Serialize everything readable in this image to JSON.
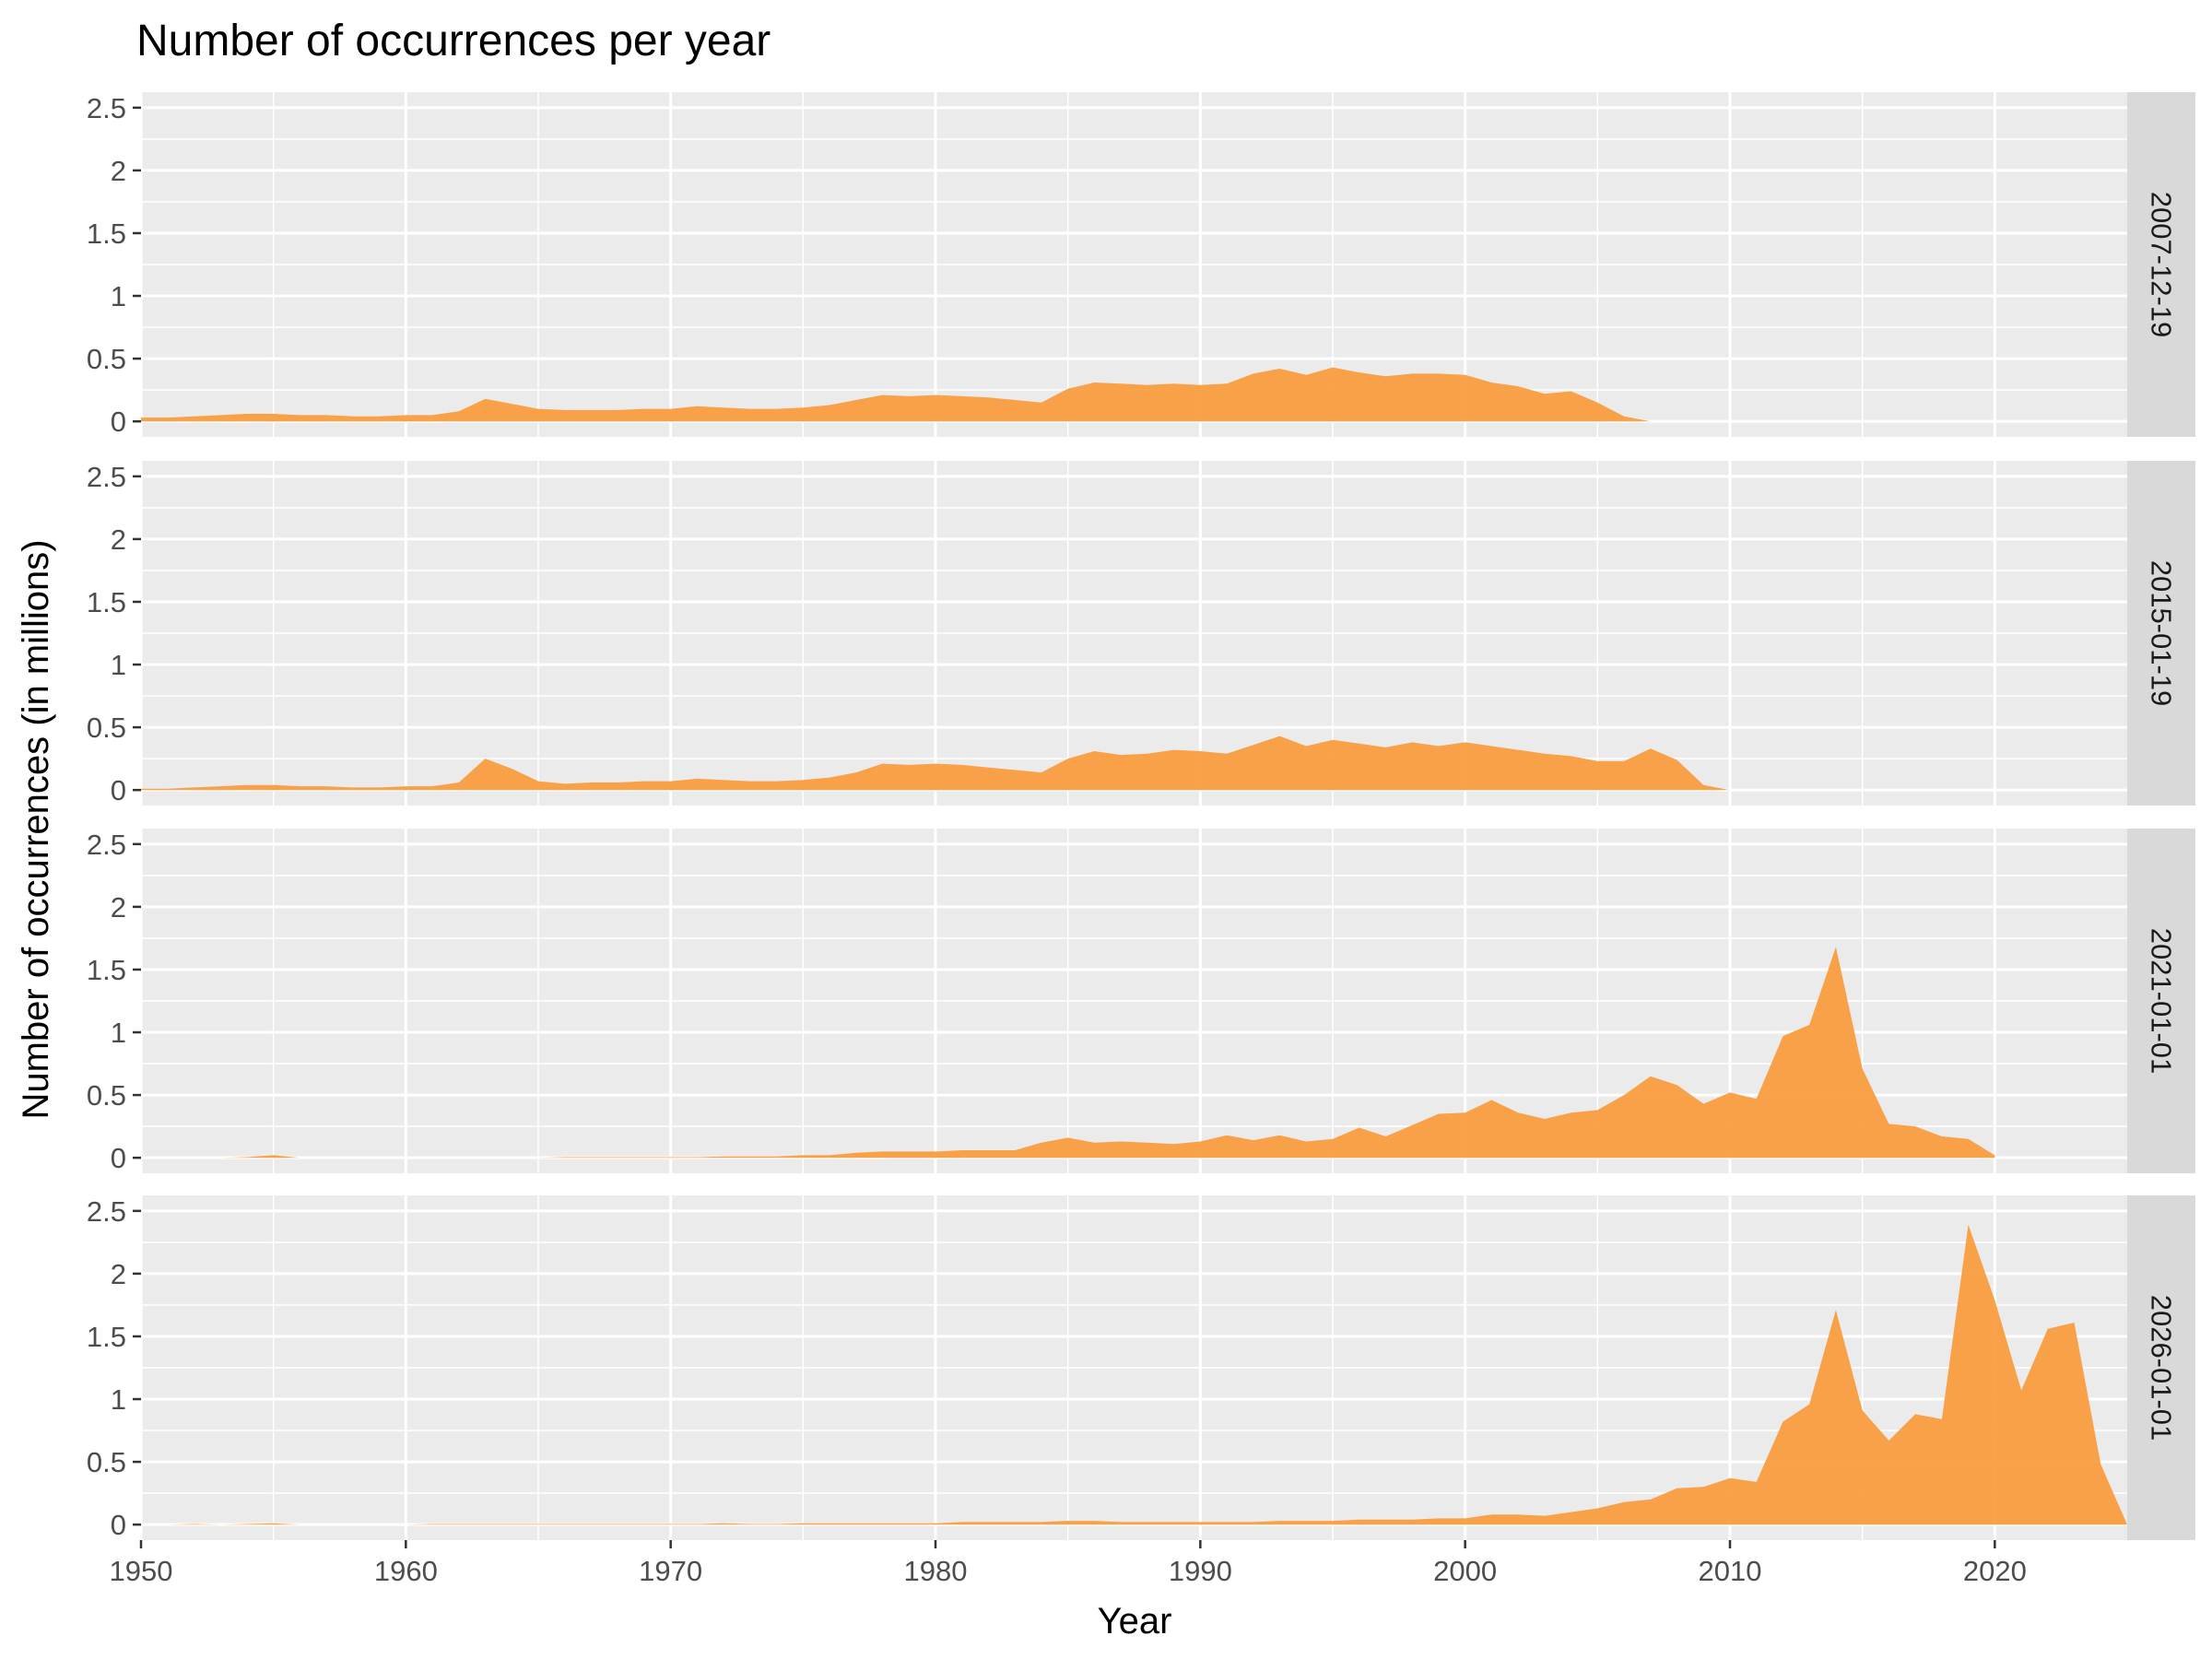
{
  "chart_data": {
    "type": "area",
    "title": "Number of occurrences per year",
    "xlabel": "Year",
    "ylabel": "Number of occurrences (in millions)",
    "xlim": [
      1950,
      2025
    ],
    "ylim": [
      0,
      2.5
    ],
    "x_ticks": [
      "1950",
      "1960",
      "1970",
      "1980",
      "1990",
      "2000",
      "2010",
      "2020"
    ],
    "y_ticks": [
      "0",
      "0.5",
      "1",
      "1.5",
      "2",
      "2.5"
    ],
    "color": "#f99d3f",
    "panels": [
      {
        "name": "2007-12-19",
        "x": [
          1950,
          1951,
          1952,
          1953,
          1954,
          1955,
          1956,
          1957,
          1958,
          1959,
          1960,
          1961,
          1962,
          1963,
          1964,
          1965,
          1966,
          1967,
          1968,
          1969,
          1970,
          1971,
          1972,
          1973,
          1974,
          1975,
          1976,
          1977,
          1978,
          1979,
          1980,
          1981,
          1982,
          1983,
          1984,
          1985,
          1986,
          1987,
          1988,
          1989,
          1990,
          1991,
          1992,
          1993,
          1994,
          1995,
          1996,
          1997,
          1998,
          1999,
          2000,
          2001,
          2002,
          2003,
          2004,
          2005,
          2006,
          2007
        ],
        "values": [
          0.03,
          0.03,
          0.04,
          0.05,
          0.06,
          0.06,
          0.05,
          0.05,
          0.04,
          0.04,
          0.05,
          0.05,
          0.08,
          0.18,
          0.14,
          0.1,
          0.09,
          0.09,
          0.09,
          0.1,
          0.1,
          0.12,
          0.11,
          0.1,
          0.1,
          0.11,
          0.13,
          0.17,
          0.21,
          0.2,
          0.21,
          0.2,
          0.19,
          0.17,
          0.15,
          0.26,
          0.31,
          0.3,
          0.29,
          0.3,
          0.29,
          0.3,
          0.38,
          0.42,
          0.37,
          0.43,
          0.39,
          0.36,
          0.38,
          0.38,
          0.37,
          0.31,
          0.28,
          0.22,
          0.24,
          0.15,
          0.04,
          0.0
        ]
      },
      {
        "name": "2015-01-19",
        "x": [
          1950,
          1951,
          1952,
          1953,
          1954,
          1955,
          1956,
          1957,
          1958,
          1959,
          1960,
          1961,
          1962,
          1963,
          1964,
          1965,
          1966,
          1967,
          1968,
          1969,
          1970,
          1971,
          1972,
          1973,
          1974,
          1975,
          1976,
          1977,
          1978,
          1979,
          1980,
          1981,
          1982,
          1983,
          1984,
          1985,
          1986,
          1987,
          1988,
          1989,
          1990,
          1991,
          1992,
          1993,
          1994,
          1995,
          1996,
          1997,
          1998,
          1999,
          2000,
          2001,
          2002,
          2003,
          2004,
          2005,
          2006,
          2007,
          2008,
          2009,
          2010
        ],
        "values": [
          0.01,
          0.01,
          0.02,
          0.03,
          0.04,
          0.04,
          0.03,
          0.03,
          0.02,
          0.02,
          0.03,
          0.03,
          0.06,
          0.25,
          0.17,
          0.07,
          0.05,
          0.06,
          0.06,
          0.07,
          0.07,
          0.09,
          0.08,
          0.07,
          0.07,
          0.08,
          0.1,
          0.14,
          0.21,
          0.2,
          0.21,
          0.2,
          0.18,
          0.16,
          0.14,
          0.25,
          0.31,
          0.28,
          0.29,
          0.32,
          0.31,
          0.29,
          0.36,
          0.43,
          0.35,
          0.4,
          0.37,
          0.34,
          0.38,
          0.35,
          0.38,
          0.35,
          0.32,
          0.29,
          0.27,
          0.23,
          0.23,
          0.33,
          0.24,
          0.04,
          0.0
        ]
      },
      {
        "name": "2021-01-01",
        "x": [
          1950,
          1951,
          1952,
          1953,
          1954,
          1955,
          1956,
          1957,
          1958,
          1959,
          1960,
          1961,
          1962,
          1963,
          1964,
          1965,
          1966,
          1967,
          1968,
          1969,
          1970,
          1971,
          1972,
          1973,
          1974,
          1975,
          1976,
          1977,
          1978,
          1979,
          1980,
          1981,
          1982,
          1983,
          1984,
          1985,
          1986,
          1987,
          1988,
          1989,
          1990,
          1991,
          1992,
          1993,
          1994,
          1995,
          1996,
          1997,
          1998,
          1999,
          2000,
          2001,
          2002,
          2003,
          2004,
          2005,
          2006,
          2007,
          2008,
          2009,
          2010,
          2011,
          2012,
          2013,
          2014,
          2015,
          2016,
          2017,
          2018,
          2019,
          2020
        ],
        "values": [
          0,
          0,
          0,
          0,
          0.005,
          0.02,
          0,
          0,
          0,
          0,
          0,
          0,
          0,
          0,
          0,
          0,
          0.005,
          0.005,
          0.005,
          0.005,
          0.005,
          0.005,
          0.01,
          0.01,
          0.01,
          0.02,
          0.02,
          0.04,
          0.05,
          0.05,
          0.05,
          0.06,
          0.06,
          0.06,
          0.12,
          0.16,
          0.12,
          0.13,
          0.12,
          0.11,
          0.13,
          0.18,
          0.14,
          0.18,
          0.13,
          0.15,
          0.24,
          0.17,
          0.26,
          0.35,
          0.36,
          0.46,
          0.36,
          0.31,
          0.36,
          0.38,
          0.5,
          0.65,
          0.58,
          0.43,
          0.52,
          0.47,
          0.97,
          1.06,
          1.68,
          0.71,
          0.27,
          0.25,
          0.17,
          0.15,
          0.02
        ]
      },
      {
        "name": "2026-01-01",
        "x": [
          1950,
          1951,
          1952,
          1953,
          1954,
          1955,
          1956,
          1957,
          1958,
          1959,
          1960,
          1961,
          1962,
          1963,
          1964,
          1965,
          1966,
          1967,
          1968,
          1969,
          1970,
          1971,
          1972,
          1973,
          1974,
          1975,
          1976,
          1977,
          1978,
          1979,
          1980,
          1981,
          1982,
          1983,
          1984,
          1985,
          1986,
          1987,
          1988,
          1989,
          1990,
          1991,
          1992,
          1993,
          1994,
          1995,
          1996,
          1997,
          1998,
          1999,
          2000,
          2001,
          2002,
          2003,
          2004,
          2005,
          2006,
          2007,
          2008,
          2009,
          2010,
          2011,
          2012,
          2013,
          2014,
          2015,
          2016,
          2017,
          2018,
          2019,
          2020,
          2021,
          2022,
          2023,
          2024,
          2025
        ],
        "values": [
          0,
          0,
          0.005,
          0,
          0.005,
          0.01,
          0,
          0,
          0,
          0,
          0,
          0.005,
          0.005,
          0.005,
          0.005,
          0.005,
          0.005,
          0.005,
          0.005,
          0.005,
          0.005,
          0.005,
          0.01,
          0.005,
          0.005,
          0.01,
          0.01,
          0.01,
          0.01,
          0.01,
          0.01,
          0.02,
          0.02,
          0.02,
          0.02,
          0.03,
          0.03,
          0.02,
          0.02,
          0.02,
          0.02,
          0.02,
          0.02,
          0.03,
          0.03,
          0.03,
          0.04,
          0.04,
          0.04,
          0.05,
          0.05,
          0.08,
          0.08,
          0.07,
          0.1,
          0.13,
          0.18,
          0.2,
          0.29,
          0.3,
          0.37,
          0.34,
          0.82,
          0.96,
          1.71,
          0.91,
          0.67,
          0.88,
          0.84,
          2.39,
          1.79,
          1.07,
          1.56,
          1.61,
          0.48,
          0.0
        ]
      }
    ]
  }
}
